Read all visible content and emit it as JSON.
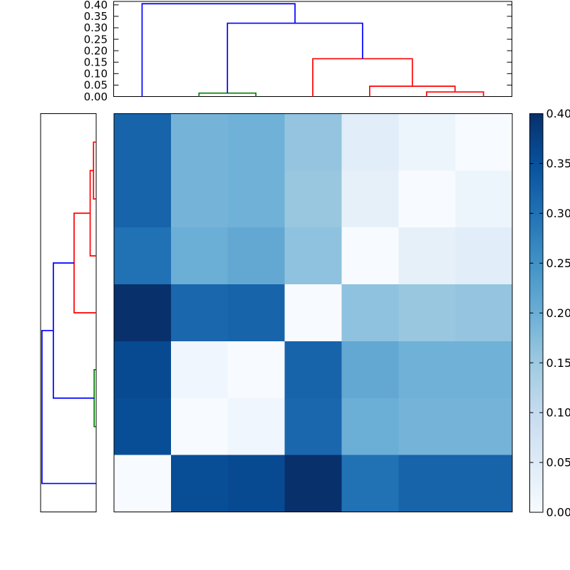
{
  "chart_data": {
    "type": "heatmap",
    "subtype": "clustermap-with-dendrograms",
    "background": "#ffffff",
    "heatmap": {
      "rows": 7,
      "cols": 7,
      "vmin": 0.0,
      "vmax": 0.4,
      "values": [
        [
          0.32,
          0.19,
          0.195,
          0.16,
          0.045,
          0.02,
          0.0
        ],
        [
          0.32,
          0.19,
          0.195,
          0.155,
          0.035,
          0.0,
          0.02
        ],
        [
          0.3,
          0.2,
          0.21,
          0.165,
          0.0,
          0.035,
          0.045
        ],
        [
          0.405,
          0.315,
          0.32,
          0.0,
          0.165,
          0.155,
          0.16
        ],
        [
          0.36,
          0.015,
          0.0,
          0.32,
          0.21,
          0.195,
          0.195
        ],
        [
          0.355,
          0.0,
          0.015,
          0.315,
          0.2,
          0.19,
          0.19
        ],
        [
          0.0,
          0.355,
          0.36,
          0.405,
          0.3,
          0.32,
          0.32
        ]
      ]
    },
    "colormap": {
      "name": "Blues",
      "anchors": [
        {
          "pos": 0.0,
          "color": "#f7fbff"
        },
        {
          "pos": 0.125,
          "color": "#deebf7"
        },
        {
          "pos": 0.25,
          "color": "#c6dbef"
        },
        {
          "pos": 0.375,
          "color": "#9ecae1"
        },
        {
          "pos": 0.5,
          "color": "#6baed6"
        },
        {
          "pos": 0.625,
          "color": "#4292c6"
        },
        {
          "pos": 0.75,
          "color": "#2171b5"
        },
        {
          "pos": 0.875,
          "color": "#08519c"
        },
        {
          "pos": 1.0,
          "color": "#08306b"
        }
      ]
    },
    "link_colors": {
      "b": "#0000ff",
      "g": "#008000",
      "r": "#ff0000"
    },
    "top_dendrogram": {
      "orientation": "top",
      "n_leaves": 7,
      "axis_range": [
        0.0,
        0.415
      ],
      "tick_values": [
        0.0,
        0.05,
        0.1,
        0.15,
        0.2,
        0.25,
        0.3,
        0.35,
        0.4
      ],
      "tick_labels": [
        "0.00",
        "0.05",
        "0.10",
        "0.15",
        "0.20",
        "0.25",
        "0.30",
        "0.35",
        "0.40"
      ],
      "merges": [
        {
          "a": "L1",
          "b": "L2",
          "h": 0.015,
          "c": "g"
        },
        {
          "a": "L5",
          "b": "L6",
          "h": 0.02,
          "c": "r"
        },
        {
          "a": "L4",
          "b": "M1",
          "h": 0.045,
          "c": "r"
        },
        {
          "a": "L3",
          "b": "M2",
          "h": 0.165,
          "c": "r"
        },
        {
          "a": "M0",
          "b": "M3",
          "h": 0.32,
          "c": "b"
        },
        {
          "a": "L0",
          "b": "M4",
          "h": 0.405,
          "c": "b"
        }
      ]
    },
    "left_dendrogram": {
      "orientation": "left",
      "n_leaves": 7,
      "axis_range": [
        0.0,
        0.415
      ],
      "merges": [
        {
          "a": "L0",
          "b": "L1",
          "h": 0.02,
          "c": "r"
        },
        {
          "a": "M0",
          "b": "L2",
          "h": 0.045,
          "c": "r"
        },
        {
          "a": "M1",
          "b": "L3",
          "h": 0.165,
          "c": "r"
        },
        {
          "a": "L4",
          "b": "L5",
          "h": 0.015,
          "c": "g"
        },
        {
          "a": "M2",
          "b": "M3",
          "h": 0.32,
          "c": "b"
        },
        {
          "a": "M4",
          "b": "L6",
          "h": 0.405,
          "c": "b"
        }
      ]
    },
    "colorbar": {
      "vmin": 0.0,
      "vmax": 0.4,
      "tick_values": [
        0.0,
        0.05,
        0.1,
        0.15,
        0.2,
        0.25,
        0.3,
        0.35,
        0.4
      ],
      "tick_labels": [
        "0.00",
        "0.05",
        "0.10",
        "0.15",
        "0.20",
        "0.25",
        "0.30",
        "0.35",
        "0.40"
      ]
    }
  }
}
